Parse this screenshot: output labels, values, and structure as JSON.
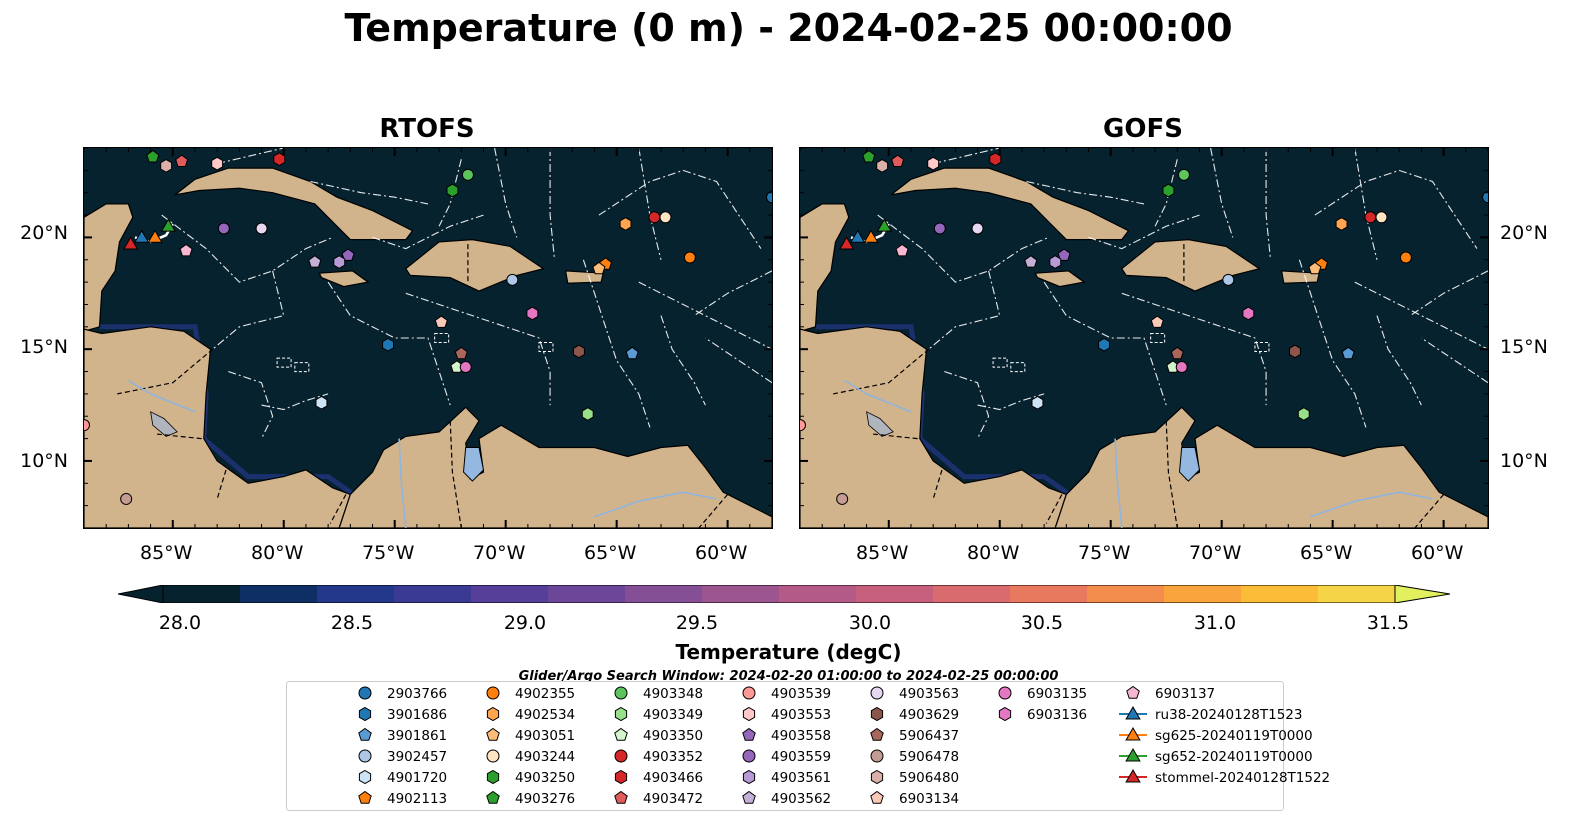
{
  "title": "Temperature (0 m) - 2024-02-25 00:00:00",
  "panels": [
    {
      "title": "RTOFS"
    },
    {
      "title": "GOFS"
    }
  ],
  "lon_labels": [
    "85°W",
    "80°W",
    "75°W",
    "70°W",
    "65°W",
    "60°W"
  ],
  "lat_labels": [
    "20°N",
    "15°N",
    "10°N"
  ],
  "map_extent": {
    "lon": [
      -89,
      -58
    ],
    "lat": [
      7,
      24
    ]
  },
  "colorbar": {
    "label": "Temperature (degC)",
    "ticks": [
      "28.0",
      "28.5",
      "29.0",
      "29.5",
      "30.0",
      "30.5",
      "31.0",
      "31.5"
    ],
    "range": [
      28.0,
      31.75
    ],
    "colors": [
      "#06222e",
      "#0e2f63",
      "#23388a",
      "#3a3a94",
      "#553f99",
      "#6c4799",
      "#844f95",
      "#9d5590",
      "#b35b86",
      "#c7607c",
      "#d96b6f",
      "#e8795f",
      "#f38d4d",
      "#f9a43d",
      "#fbbd38",
      "#f5d447"
    ],
    "extend_over": "#e2f060",
    "land": "#d2b48c",
    "ocean": "#06222e"
  },
  "search_window": "Glider/Argo Search Window: 2024-02-20 01:00:00 to 2024-02-25 00:00:00",
  "platforms": [
    {
      "id": "2903766",
      "color": "#1f77b4",
      "marker": "circle",
      "lon": -58,
      "lat": 21.8
    },
    {
      "id": "3901686",
      "color": "#1f77b4",
      "marker": "hexagon",
      "lon": -75.3,
      "lat": 15.2
    },
    {
      "id": "3901861",
      "color": "#5b9bd5",
      "marker": "pentagon",
      "lon": -64.3,
      "lat": 14.8
    },
    {
      "id": "3902457",
      "color": "#aec7e8",
      "marker": "circle",
      "lon": -69.7,
      "lat": 18.1
    },
    {
      "id": "4901720",
      "color": "#cde4f7",
      "marker": "hexagon",
      "lon": -78.3,
      "lat": 12.6
    },
    {
      "id": "4902113",
      "color": "#ff7f0e",
      "marker": "pentagon",
      "lon": -65.5,
      "lat": 18.8
    },
    {
      "id": "4902355",
      "color": "#ff7f0e",
      "marker": "circle",
      "lon": -61.7,
      "lat": 19.1
    },
    {
      "id": "4902534",
      "color": "#ffa54f",
      "marker": "hexagon",
      "lon": -64.6,
      "lat": 20.6
    },
    {
      "id": "4903051",
      "color": "#ffbb78",
      "marker": "pentagon",
      "lon": -65.8,
      "lat": 18.6
    },
    {
      "id": "4903244",
      "color": "#ffe5c2",
      "marker": "circle",
      "lon": -62.8,
      "lat": 20.9
    },
    {
      "id": "4903250",
      "color": "#2ca02c",
      "marker": "hexagon",
      "lon": -72.4,
      "lat": 22.1
    },
    {
      "id": "4903276",
      "color": "#2ca02c",
      "marker": "pentagon",
      "lon": -85.9,
      "lat": 23.6
    },
    {
      "id": "4903348",
      "color": "#5dc45d",
      "marker": "circle",
      "lon": -71.7,
      "lat": 22.8
    },
    {
      "id": "4903349",
      "color": "#98df8a",
      "marker": "hexagon",
      "lon": -66.3,
      "lat": 12.1
    },
    {
      "id": "4903350",
      "color": "#d4f5cc",
      "marker": "pentagon",
      "lon": -72.2,
      "lat": 14.2
    },
    {
      "id": "4903352",
      "color": "#d62728",
      "marker": "circle",
      "lon": -63.3,
      "lat": 20.9
    },
    {
      "id": "4903466",
      "color": "#d62728",
      "marker": "hexagon",
      "lon": -80.2,
      "lat": 23.5
    },
    {
      "id": "4903472",
      "color": "#e05c5c",
      "marker": "pentagon",
      "lon": -84.6,
      "lat": 23.4
    },
    {
      "id": "4903539",
      "color": "#ff9896",
      "marker": "circle",
      "lon": -89,
      "lat": 11.6
    },
    {
      "id": "4903553",
      "color": "#ffc9c7",
      "marker": "hexagon",
      "lon": -83.0,
      "lat": 23.3
    },
    {
      "id": "4903558",
      "color": "#9467bd",
      "marker": "pentagon",
      "lon": -77.1,
      "lat": 19.2
    },
    {
      "id": "4903559",
      "color": "#9467bd",
      "marker": "circle",
      "lon": -82.7,
      "lat": 20.4
    },
    {
      "id": "4903561",
      "color": "#b79ad6",
      "marker": "hexagon",
      "lon": -77.5,
      "lat": 18.9
    },
    {
      "id": "4903562",
      "color": "#c5b0d5",
      "marker": "pentagon",
      "lon": -78.6,
      "lat": 18.9
    },
    {
      "id": "4903563",
      "color": "#e6d7f2",
      "marker": "circle",
      "lon": -81.0,
      "lat": 20.4
    },
    {
      "id": "4903629",
      "color": "#8c564b",
      "marker": "hexagon",
      "lon": -66.7,
      "lat": 14.9
    },
    {
      "id": "5906437",
      "color": "#a9665a",
      "marker": "pentagon",
      "lon": -72.0,
      "lat": 14.8
    },
    {
      "id": "5906478",
      "color": "#c49c94",
      "marker": "circle",
      "lon": -87.1,
      "lat": 8.3
    },
    {
      "id": "5906480",
      "color": "#dbb0a8",
      "marker": "hexagon",
      "lon": -85.3,
      "lat": 23.2
    },
    {
      "id": "6903134",
      "color": "#f7c9b6",
      "marker": "pentagon",
      "lon": -72.9,
      "lat": 16.2
    },
    {
      "id": "6903135",
      "color": "#e377c2",
      "marker": "circle",
      "lon": -71.8,
      "lat": 14.2
    },
    {
      "id": "6903136",
      "color": "#e377c2",
      "marker": "hexagon",
      "lon": -68.8,
      "lat": 16.6
    },
    {
      "id": "6903137",
      "color": "#f7b6d2",
      "marker": "pentagon",
      "lon": -84.4,
      "lat": 19.4
    }
  ],
  "gliders": [
    {
      "id": "ru38-20240128T1523",
      "color": "#1f77b4",
      "lon": -86.4,
      "lat": 20.0
    },
    {
      "id": "sg625-20240119T0000",
      "color": "#ff7f0e",
      "lon": -85.8,
      "lat": 20.0
    },
    {
      "id": "sg652-20240119T0000",
      "color": "#2ca02c",
      "lon": -85.2,
      "lat": 20.5
    },
    {
      "id": "stommel-20240128T1522",
      "color": "#d62728",
      "lon": -86.9,
      "lat": 19.7
    }
  ]
}
